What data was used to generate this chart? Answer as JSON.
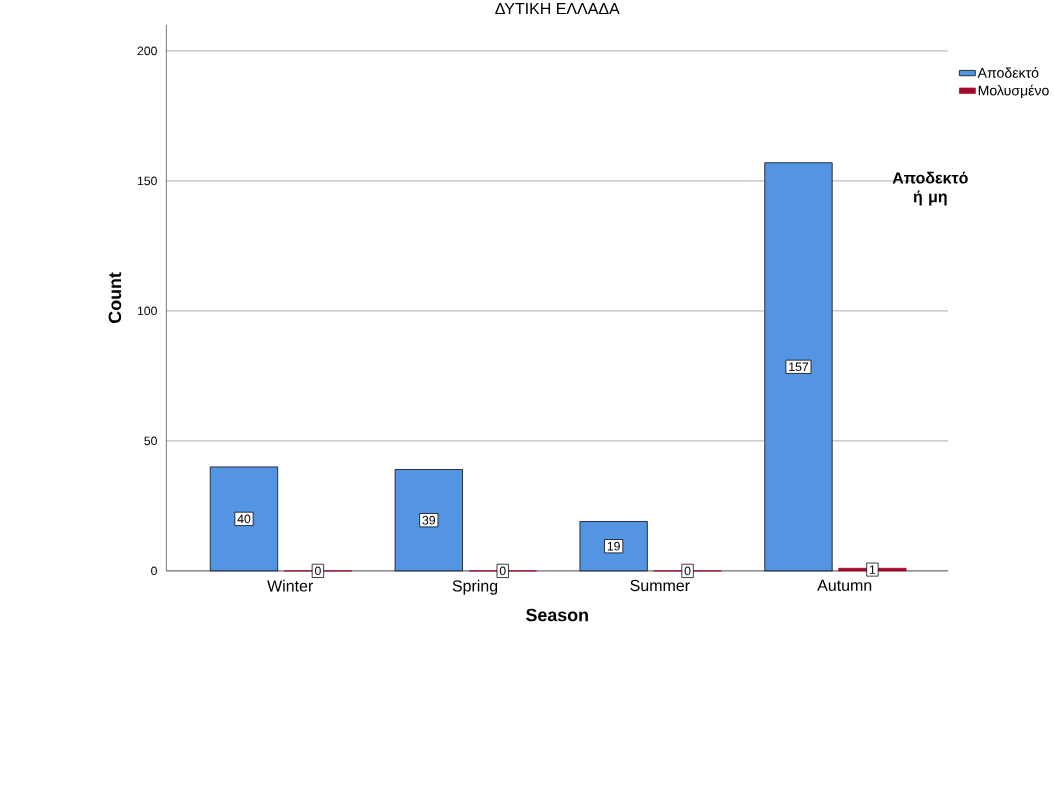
{
  "chart_data": {
    "type": "bar",
    "title": "ΔΥΤΙΚΗ ΕΛΛΑΔΑ",
    "xlabel": "Season",
    "ylabel": "Count",
    "legend_title": "Αποδεκτό ή μη",
    "categories": [
      "Winter",
      "Spring",
      "Summer",
      "Autumn"
    ],
    "series": [
      {
        "name": "Αποδεκτό",
        "color": "#5394e3",
        "values": [
          40,
          39,
          19,
          157
        ]
      },
      {
        "name": "Μολυσμένο",
        "color": "#a2082a",
        "values": [
          0,
          0,
          0,
          1
        ]
      }
    ],
    "ylim": [
      0,
      210
    ],
    "yticks": [
      0,
      50,
      100,
      150,
      200
    ],
    "grid": "y",
    "legend": "top right",
    "data_labels": true
  }
}
